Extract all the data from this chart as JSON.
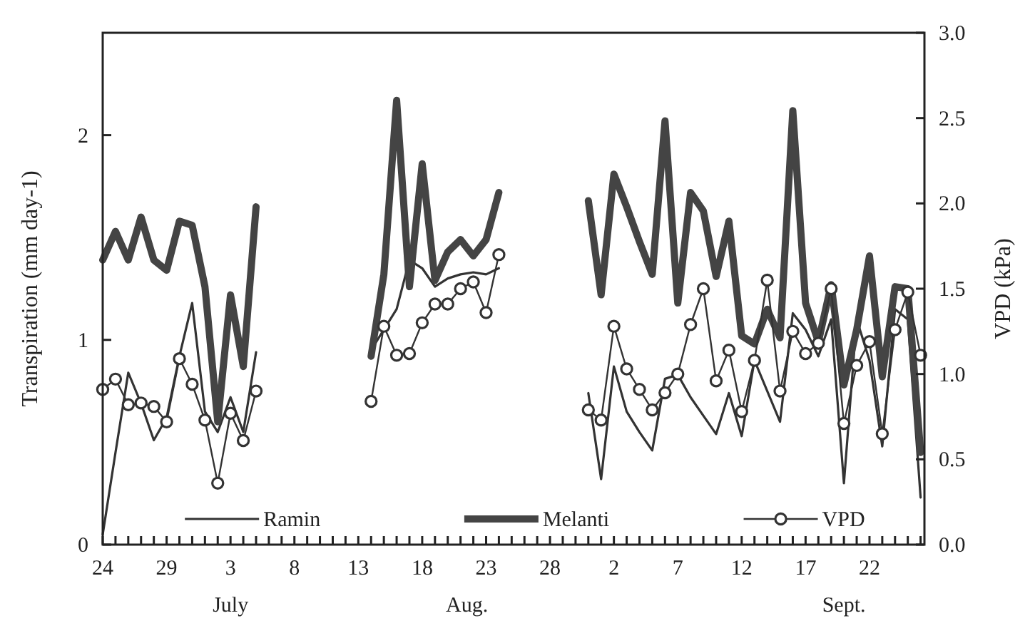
{
  "chart_data": {
    "type": "line",
    "xlabel": null,
    "ylabel": "Transpiration  (mm day-1)",
    "y2label": "VPD (kPa)",
    "categories": [
      "24",
      null,
      null,
      null,
      null,
      "29",
      null,
      null,
      null,
      null,
      "3",
      null,
      null,
      null,
      null,
      "8",
      null,
      null,
      null,
      null,
      "13",
      null,
      null,
      null,
      null,
      "18",
      null,
      null,
      null,
      null,
      "23",
      null,
      null,
      null,
      null,
      "28",
      null,
      null,
      null,
      null,
      "2",
      null,
      null,
      null,
      null,
      "7",
      null,
      null,
      null,
      null,
      "12",
      null,
      null,
      null,
      null,
      "17",
      null,
      null,
      null,
      null,
      "22",
      null,
      null,
      null,
      null
    ],
    "series": [
      {
        "name": "Ramin",
        "color": "#333333",
        "marker": "none",
        "values": [
          0.05,
          0.45,
          0.84,
          0.69,
          0.51,
          0.62,
          0.92,
          1.18,
          0.65,
          0.55,
          0.72,
          0.55,
          0.94,
          null,
          null,
          null,
          null,
          null,
          null,
          null,
          null,
          0.95,
          1.05,
          1.15,
          1.39,
          1.35,
          1.26,
          1.3,
          1.32,
          1.33,
          1.32,
          1.35,
          null,
          null,
          null,
          null,
          null,
          null,
          0.74,
          0.32,
          0.87,
          0.65,
          0.55,
          0.46,
          0.81,
          0.83,
          0.72,
          0.63,
          0.54,
          0.74,
          0.53,
          0.9,
          0.75,
          0.6,
          1.13,
          1.05,
          0.92,
          1.1,
          0.3,
          1.1,
          0.9,
          0.48,
          1.15,
          1.1,
          0.23
        ]
      },
      {
        "name": "Melanti",
        "color": "#444444",
        "marker": "none",
        "values": [
          1.39,
          1.53,
          1.39,
          1.6,
          1.39,
          1.34,
          1.58,
          1.56,
          1.26,
          0.6,
          1.22,
          0.87,
          1.65,
          null,
          null,
          null,
          null,
          null,
          null,
          null,
          null,
          0.92,
          1.32,
          2.17,
          1.26,
          1.86,
          1.29,
          1.43,
          1.49,
          1.41,
          1.49,
          1.72,
          null,
          null,
          null,
          null,
          null,
          null,
          1.68,
          1.22,
          1.81,
          1.65,
          1.48,
          1.32,
          2.07,
          1.18,
          1.72,
          1.63,
          1.31,
          1.58,
          1.02,
          0.98,
          1.15,
          1.01,
          2.12,
          1.18,
          0.99,
          1.27,
          0.78,
          1.05,
          1.41,
          0.82,
          1.26,
          1.25,
          0.45
        ]
      },
      {
        "name": "VPD",
        "color": "#333333",
        "marker": "circle",
        "axis": "y2",
        "values": [
          0.91,
          0.97,
          0.82,
          0.83,
          0.81,
          0.72,
          1.09,
          0.94,
          0.73,
          0.36,
          0.77,
          0.61,
          0.9,
          null,
          null,
          null,
          null,
          null,
          null,
          null,
          null,
          0.84,
          1.28,
          1.11,
          1.12,
          1.3,
          1.41,
          1.41,
          1.5,
          1.54,
          1.36,
          1.7,
          null,
          null,
          null,
          null,
          null,
          null,
          0.79,
          0.73,
          1.28,
          1.03,
          0.91,
          0.79,
          0.89,
          1.0,
          1.29,
          1.5,
          0.96,
          1.14,
          0.78,
          1.08,
          1.55,
          0.9,
          1.25,
          1.12,
          1.18,
          1.5,
          0.71,
          1.05,
          1.19,
          0.65,
          1.26,
          1.48,
          1.11
        ]
      }
    ],
    "ylim": [
      0,
      2.5
    ],
    "yticks": [
      0,
      1,
      2
    ],
    "y2lim": [
      0,
      3
    ],
    "y2ticks": [
      {
        "value": 0,
        "label": "0.0"
      },
      {
        "value": 0.5,
        "label": "0.5"
      },
      {
        "value": 1,
        "label": "1.0"
      },
      {
        "value": 1.5,
        "label": "1.5"
      },
      {
        "value": 2,
        "label": "2.0"
      },
      {
        "value": 2.5,
        "label": "2.5"
      },
      {
        "value": 3,
        "label": "3.0"
      }
    ],
    "annotations": [
      "July",
      "Aug.",
      "Sept."
    ],
    "grid": false,
    "legend": "bottom",
    "line_style": "solid"
  }
}
